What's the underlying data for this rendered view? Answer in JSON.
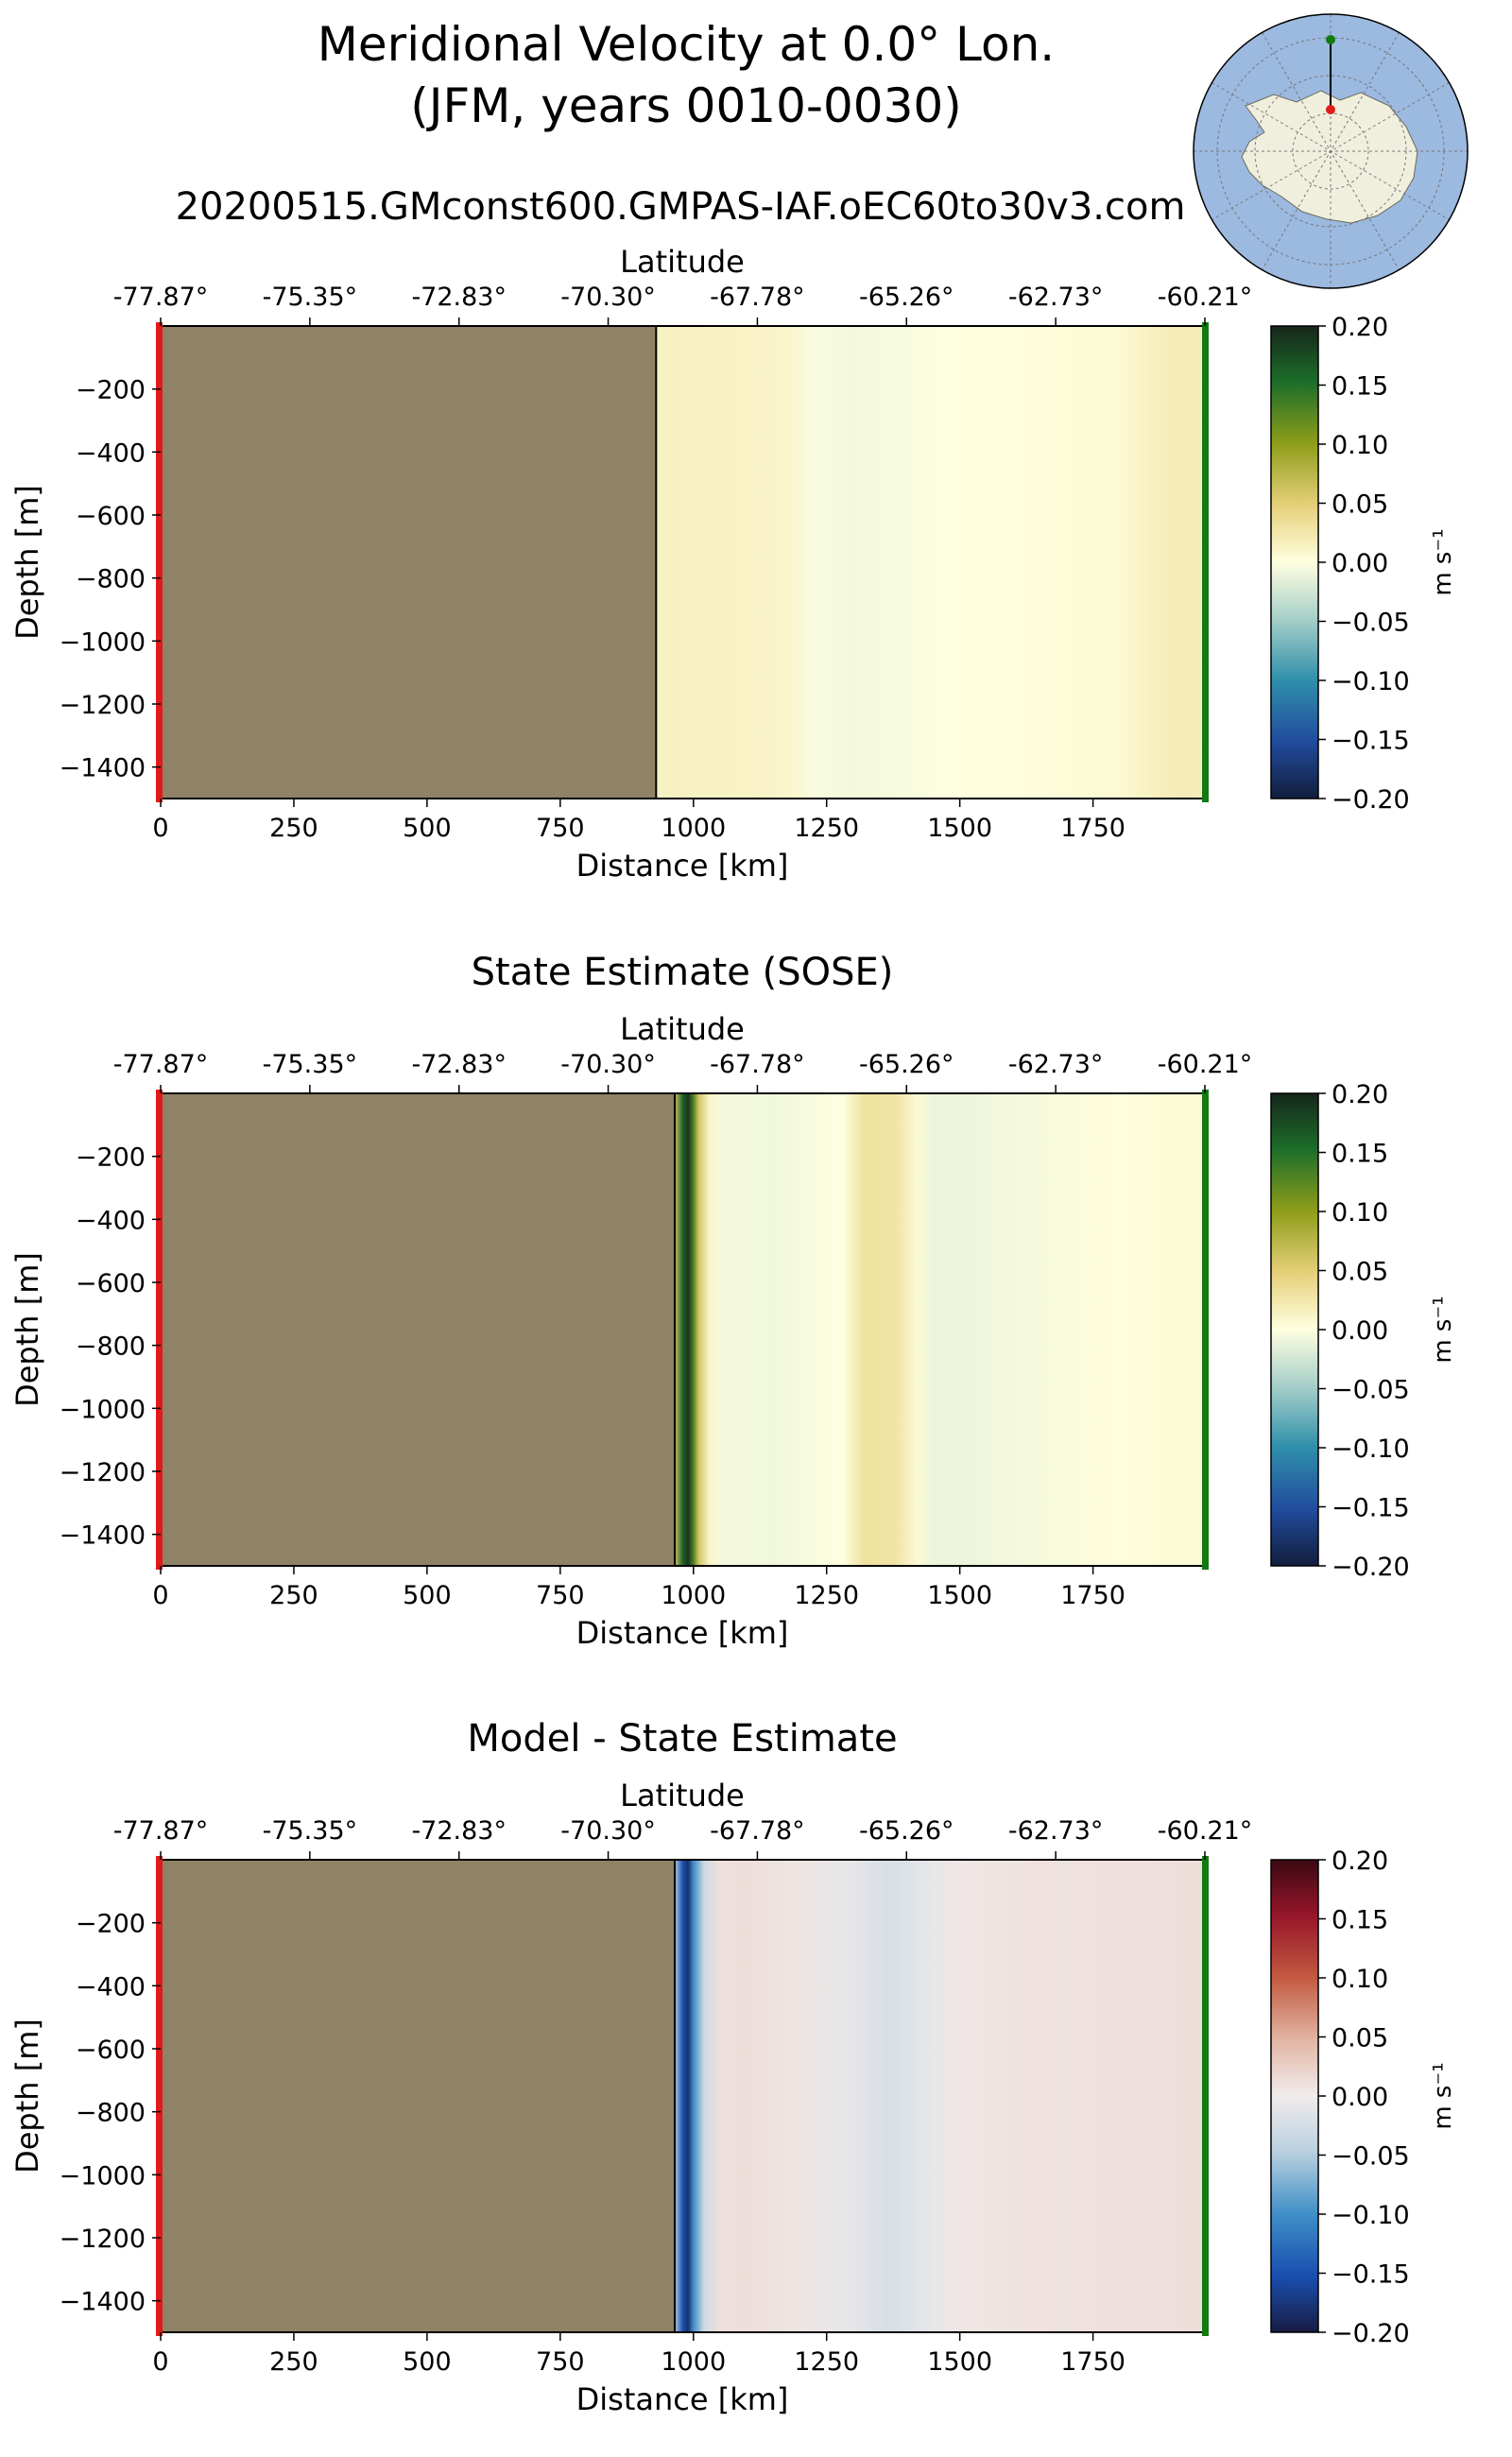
{
  "figure": {
    "title_line1": "Meridional Velocity at 0.0° Lon.",
    "title_line2": "(JFM, years 0010-0030)",
    "run_name": "20200515.GMconst600.GMPAS-IAF.oEC60to30v3.com",
    "colors": {
      "land": "#8f8266",
      "ocean_inset": "#9cb9e0",
      "antarctica_inset": "#f0efdd",
      "start_marker": "#e11a1a",
      "end_marker": "#117a11"
    }
  },
  "chart_data": [
    {
      "type": "heatmap",
      "title": "",
      "xlabel": "Distance [km]",
      "ylabel": "Depth [m]",
      "top_xlabel": "Latitude",
      "xlim": [
        0,
        1960
      ],
      "ylim": [
        -1500,
        0
      ],
      "x_ticks": [
        "0",
        "250",
        "500",
        "750",
        "1000",
        "1250",
        "1500",
        "1750"
      ],
      "y_ticks": [
        "−200",
        "−400",
        "−600",
        "−800",
        "−1000",
        "−1200",
        "−1400"
      ],
      "lat_ticks": [
        "-77.87°",
        "-75.35°",
        "-72.83°",
        "-70.30°",
        "-67.78°",
        "-65.26°",
        "-62.73°",
        "-60.21°"
      ],
      "land_extent_km": [
        0,
        930
      ],
      "colorbar": {
        "label": "m s⁻¹",
        "ticks": [
          "0.20",
          "0.15",
          "0.10",
          "0.05",
          "0.00",
          "−0.05",
          "−0.10",
          "−0.15",
          "−0.20"
        ],
        "range": [
          -0.2,
          0.2
        ],
        "cmap": "delta"
      },
      "value_profile": {
        "distance_km": [
          930,
          960,
          1000,
          1100,
          1180,
          1220,
          1300,
          1400,
          1500,
          1600,
          1700,
          1800,
          1870,
          1920,
          1960
        ],
        "velocity": [
          0.012,
          0.015,
          0.014,
          0.013,
          0.01,
          -0.004,
          -0.006,
          -0.004,
          0.0,
          0.002,
          0.004,
          0.006,
          0.016,
          0.02,
          0.018
        ]
      }
    },
    {
      "type": "heatmap",
      "title": "State Estimate (SOSE)",
      "xlabel": "Distance [km]",
      "ylabel": "Depth [m]",
      "top_xlabel": "Latitude",
      "xlim": [
        0,
        1960
      ],
      "ylim": [
        -1500,
        0
      ],
      "x_ticks": [
        "0",
        "250",
        "500",
        "750",
        "1000",
        "1250",
        "1500",
        "1750"
      ],
      "y_ticks": [
        "−200",
        "−400",
        "−600",
        "−800",
        "−1000",
        "−1200",
        "−1400"
      ],
      "lat_ticks": [
        "-77.87°",
        "-75.35°",
        "-72.83°",
        "-70.30°",
        "-67.78°",
        "-65.26°",
        "-62.73°",
        "-60.21°"
      ],
      "land_extent_km": [
        0,
        965
      ],
      "colorbar": {
        "label": "m s⁻¹",
        "ticks": [
          "0.20",
          "0.15",
          "0.10",
          "0.05",
          "0.00",
          "−0.05",
          "−0.10",
          "−0.15",
          "−0.20"
        ],
        "range": [
          -0.2,
          0.2
        ],
        "cmap": "delta"
      },
      "value_profile": {
        "distance_km": [
          965,
          980,
          990,
          1000,
          1010,
          1030,
          1060,
          1150,
          1280,
          1320,
          1380,
          1420,
          1450,
          1520,
          1600,
          1800,
          1960
        ],
        "velocity": [
          0.06,
          0.16,
          0.19,
          0.13,
          0.06,
          0.01,
          -0.006,
          -0.008,
          0.0,
          0.03,
          0.028,
          0.005,
          -0.01,
          -0.01,
          -0.006,
          0.002,
          0.006
        ]
      }
    },
    {
      "type": "heatmap",
      "title": "Model - State Estimate",
      "xlabel": "Distance [km]",
      "ylabel": "Depth [m]",
      "top_xlabel": "Latitude",
      "xlim": [
        0,
        1960
      ],
      "ylim": [
        -1500,
        0
      ],
      "x_ticks": [
        "0",
        "250",
        "500",
        "750",
        "1000",
        "1250",
        "1500",
        "1750"
      ],
      "y_ticks": [
        "−200",
        "−400",
        "−600",
        "−800",
        "−1000",
        "−1200",
        "−1400"
      ],
      "lat_ticks": [
        "-77.87°",
        "-75.35°",
        "-72.83°",
        "-70.30°",
        "-67.78°",
        "-65.26°",
        "-62.73°",
        "-60.21°"
      ],
      "land_extent_km": [
        0,
        965
      ],
      "colorbar": {
        "label": "m s⁻¹",
        "ticks": [
          "0.20",
          "0.15",
          "0.10",
          "0.05",
          "0.00",
          "−0.05",
          "−0.10",
          "−0.15",
          "−0.20"
        ],
        "range": [
          -0.2,
          0.2
        ],
        "cmap": "balance"
      },
      "value_profile": {
        "distance_km": [
          965,
          980,
          990,
          1000,
          1020,
          1050,
          1100,
          1200,
          1300,
          1370,
          1430,
          1500,
          1600,
          1800,
          1960
        ],
        "velocity": [
          -0.05,
          -0.15,
          -0.18,
          -0.1,
          -0.03,
          0.01,
          0.012,
          0.006,
          -0.01,
          -0.022,
          -0.012,
          0.004,
          0.008,
          0.01,
          0.012
        ]
      }
    }
  ]
}
